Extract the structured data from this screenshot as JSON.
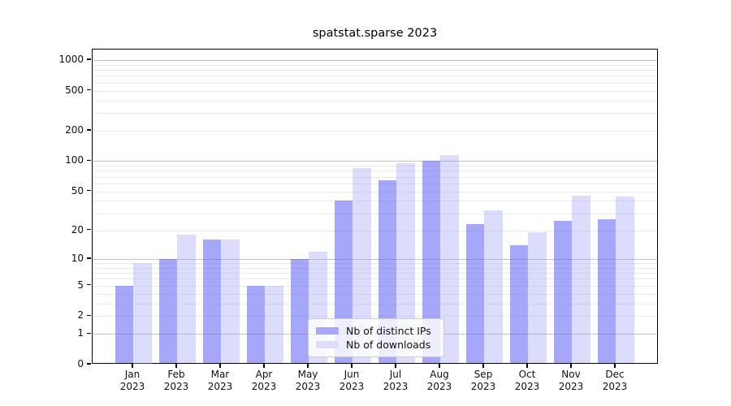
{
  "title": "spatstat.sparse 2023",
  "chart_data": {
    "type": "bar",
    "title": "spatstat.sparse 2023",
    "y_scale": "log10(1+x)",
    "grid": true,
    "legend_position": "lower center",
    "xlabel": "",
    "ylabel": "",
    "ylim": [
      0,
      1200
    ],
    "y_ticks": [
      0,
      1,
      2,
      5,
      10,
      20,
      50,
      100,
      200,
      500,
      1000
    ],
    "categories": [
      "Jan 2023",
      "Feb 2023",
      "Mar 2023",
      "Apr 2023",
      "May 2023",
      "Jun 2023",
      "Jul 2023",
      "Aug 2023",
      "Sep 2023",
      "Oct 2023",
      "Nov 2023",
      "Dec 2023"
    ],
    "series": [
      {
        "name": "Nb of distinct IPs",
        "color": "#a9a9f7",
        "fill": "rgba(100,100,243,0.57)",
        "values": [
          5,
          10,
          16,
          5,
          10,
          40,
          65,
          100,
          23,
          14,
          25,
          26
        ]
      },
      {
        "name": "Nb of downloads",
        "color": "#dcdcfb",
        "fill": "rgba(158,158,247,0.36)",
        "values": [
          9,
          18,
          16,
          5,
          12,
          85,
          95,
          115,
          32,
          19,
          45,
          44
        ]
      }
    ],
    "colors": {
      "major_grid": "#c3c3c3",
      "minor_grid": "#ebebeb",
      "axis": "#000000",
      "text": "#111111",
      "legend_border": "#cccccc"
    }
  }
}
